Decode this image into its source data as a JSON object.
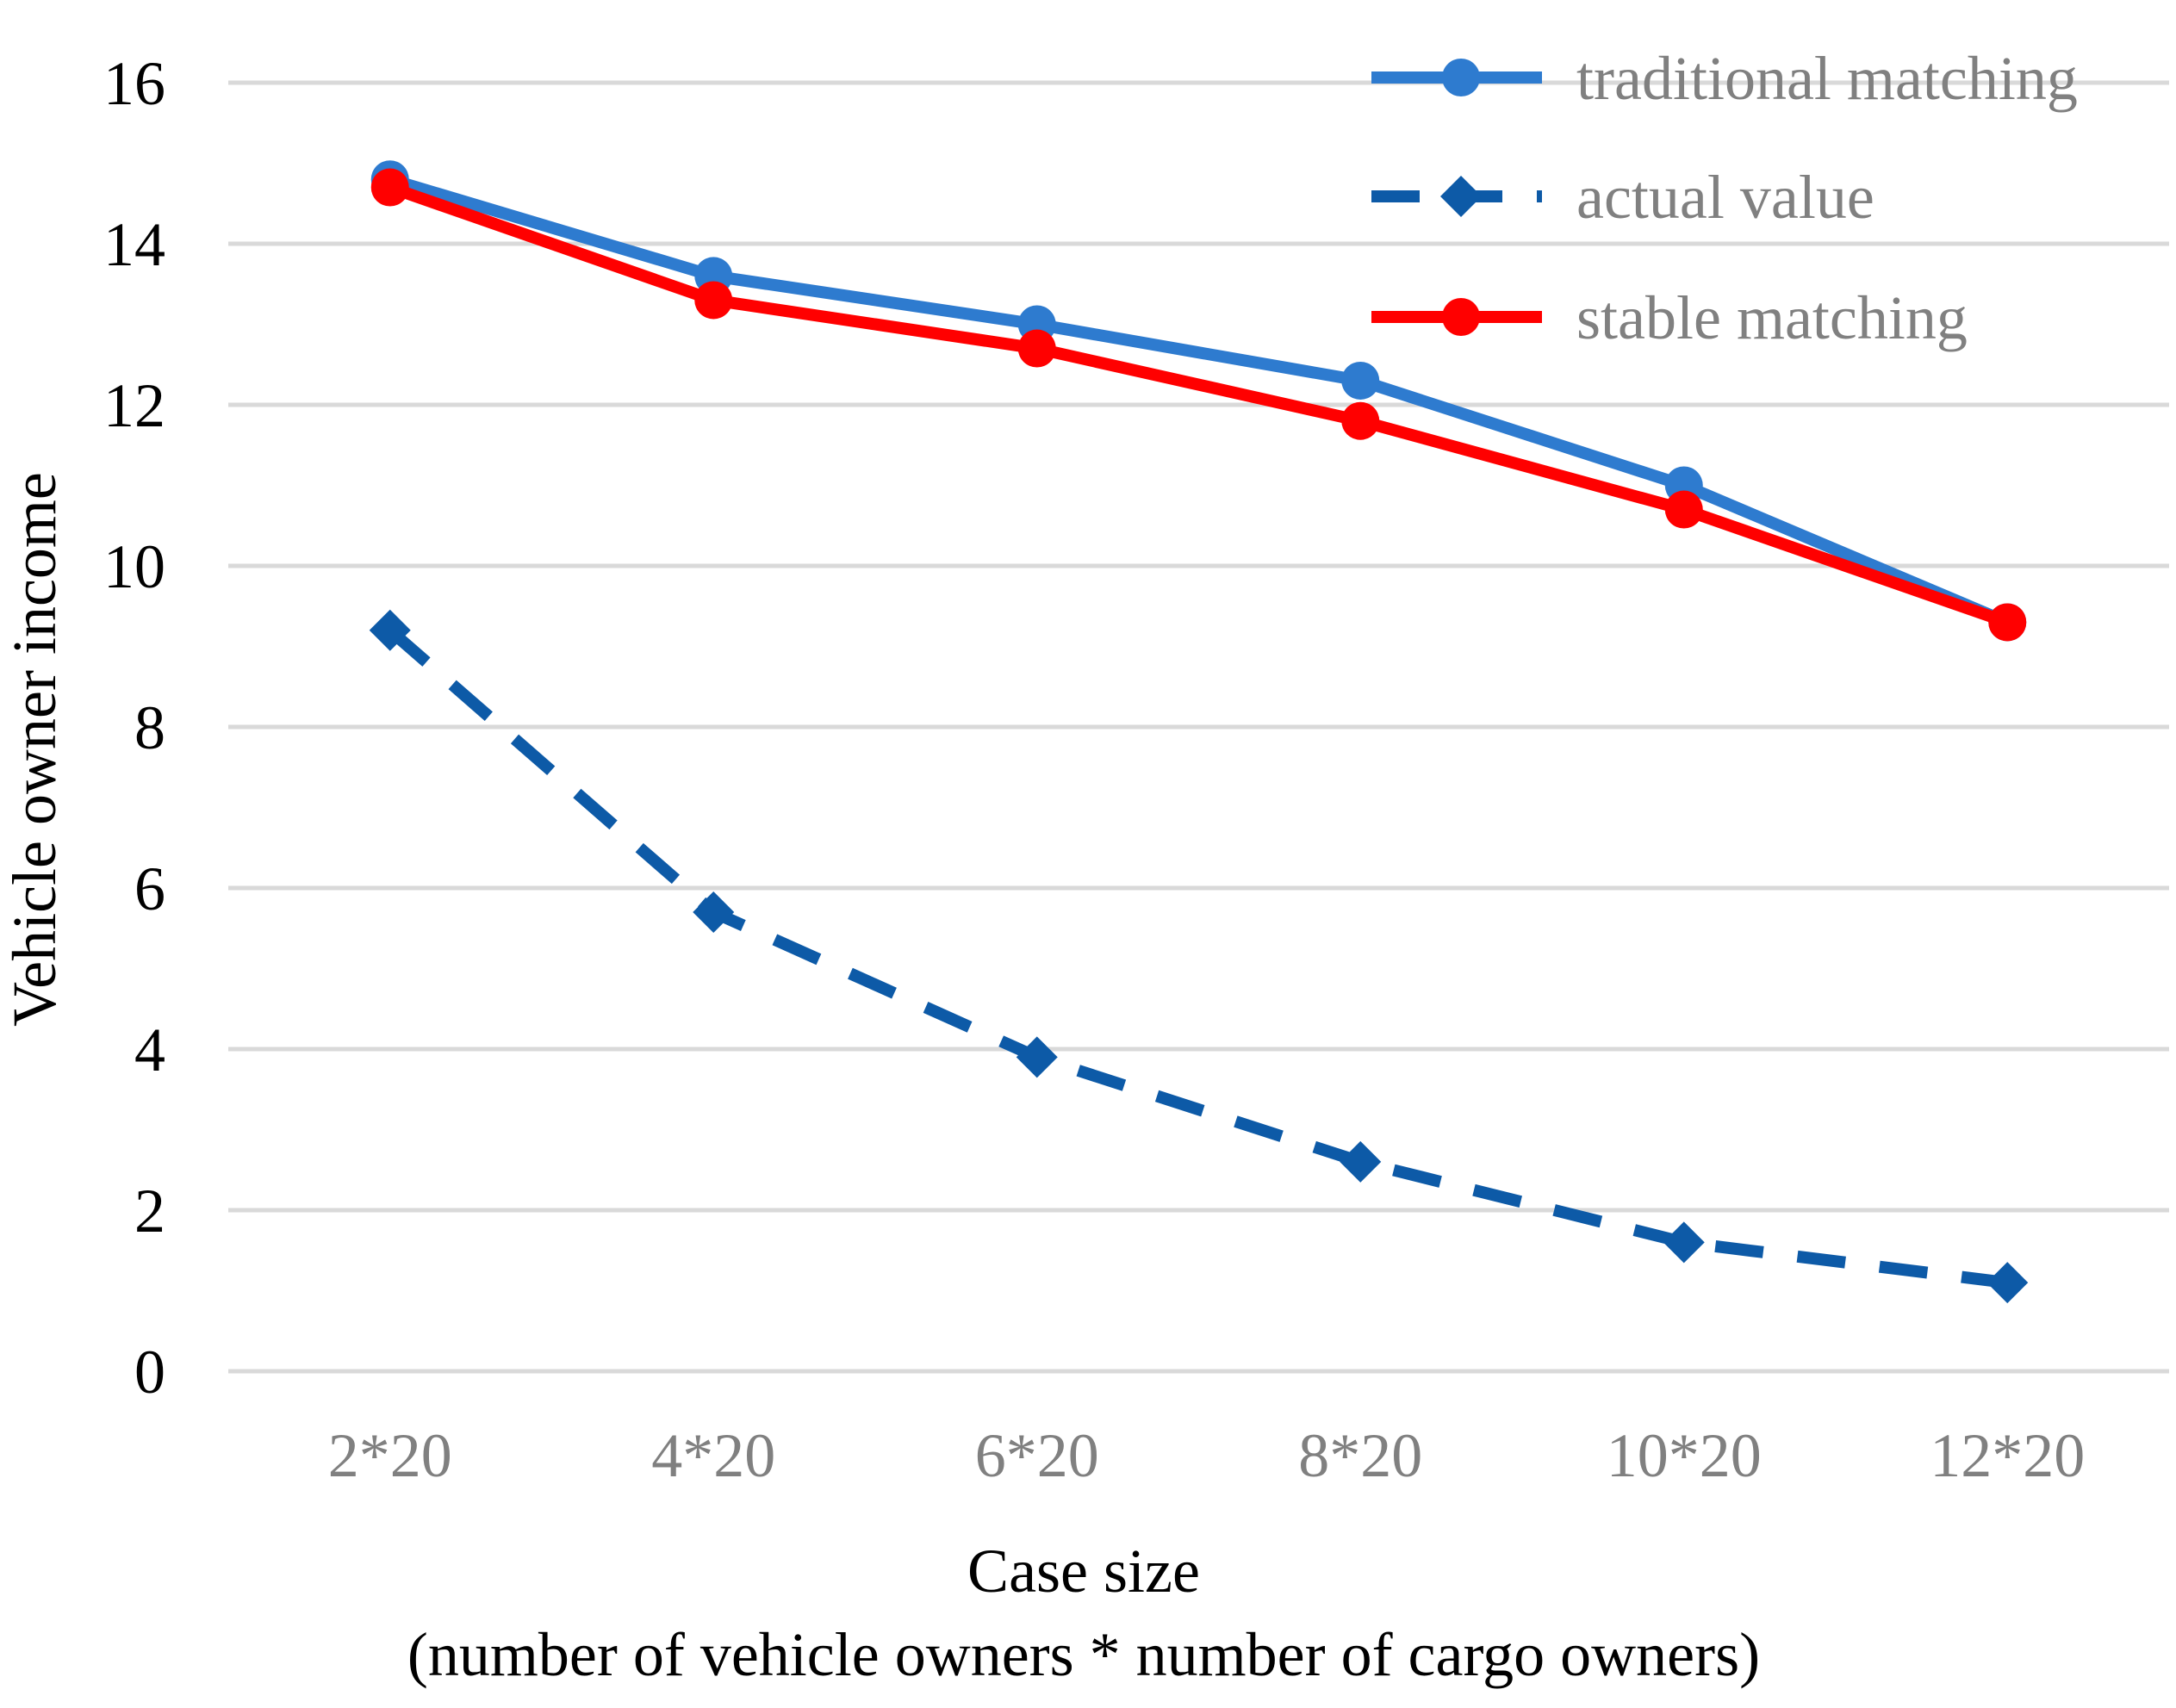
{
  "chart_data": {
    "type": "line",
    "categories": [
      "2*20",
      "4*20",
      "6*20",
      "8*20",
      "10*20",
      "12*20"
    ],
    "xlabel": "Case size",
    "xlabel_line2": "(number of vehicle owners * number of cargo owners)",
    "ylabel": "Vehicle owner income",
    "ylim": [
      0,
      16
    ],
    "yticks": [
      0,
      2,
      4,
      6,
      8,
      10,
      12,
      14,
      16
    ],
    "grid": "horizontal",
    "legend_position": "top-right",
    "series": [
      {
        "name": "traditional matching",
        "values": [
          14.8,
          13.6,
          13.0,
          12.3,
          11.0,
          9.3
        ],
        "color": "#2E7BCF",
        "marker": "circle",
        "dash": "solid"
      },
      {
        "name": "actual value",
        "values": [
          9.2,
          5.7,
          3.9,
          2.6,
          1.6,
          1.1
        ],
        "color": "#0D5AA7",
        "marker": "diamond",
        "dash": "dashed"
      },
      {
        "name": "stable matching",
        "values": [
          14.7,
          13.3,
          12.7,
          11.8,
          10.7,
          9.3
        ],
        "color": "#FF0000",
        "marker": "circle",
        "dash": "solid"
      }
    ]
  }
}
